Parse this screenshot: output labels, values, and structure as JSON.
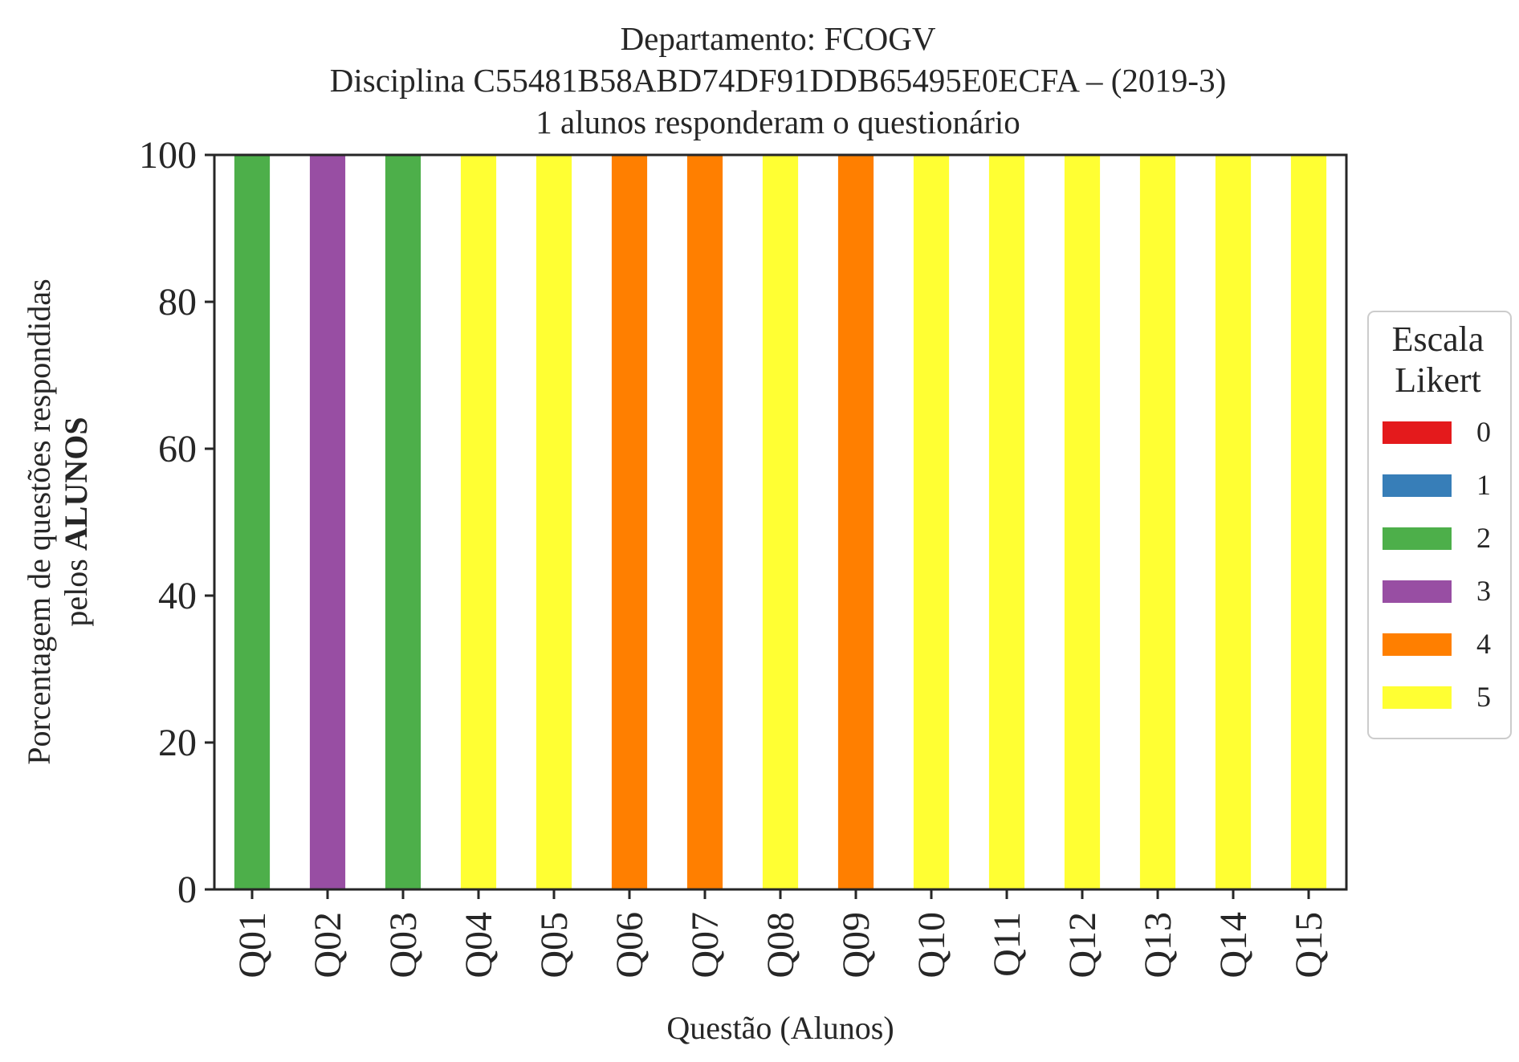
{
  "chart_data": {
    "type": "bar",
    "stacked": true,
    "title": [
      "Departamento: FCOGV",
      "Disciplina C55481B58ABD74DF91DDB65495E0ECFA – (2019-3)",
      "1 alunos responderam o questionário"
    ],
    "xlabel": "Questão (Alunos)",
    "ylabel": {
      "line1": "Porcentagem de questões respondidas",
      "line2_prefix": "pelos ",
      "line2_bold": "ALUNOS"
    },
    "ylim": [
      0,
      100
    ],
    "yticks": [
      0,
      20,
      40,
      60,
      80,
      100
    ],
    "grid": false,
    "categories": [
      "Q01",
      "Q02",
      "Q03",
      "Q04",
      "Q05",
      "Q06",
      "Q07",
      "Q08",
      "Q09",
      "Q10",
      "Q11",
      "Q12",
      "Q13",
      "Q14",
      "Q15"
    ],
    "series": [
      {
        "name": "0",
        "color": "#e41a1c",
        "values": [
          0,
          0,
          0,
          0,
          0,
          0,
          0,
          0,
          0,
          0,
          0,
          0,
          0,
          0,
          0
        ]
      },
      {
        "name": "1",
        "color": "#377eb8",
        "values": [
          0,
          0,
          0,
          0,
          0,
          0,
          0,
          0,
          0,
          0,
          0,
          0,
          0,
          0,
          0
        ]
      },
      {
        "name": "2",
        "color": "#4daf4a",
        "values": [
          100,
          0,
          100,
          0,
          0,
          0,
          0,
          0,
          0,
          0,
          0,
          0,
          0,
          0,
          0
        ]
      },
      {
        "name": "3",
        "color": "#984ea3",
        "values": [
          0,
          100,
          0,
          0,
          0,
          0,
          0,
          0,
          0,
          0,
          0,
          0,
          0,
          0,
          0
        ]
      },
      {
        "name": "4",
        "color": "#ff7f00",
        "values": [
          0,
          0,
          0,
          0,
          0,
          100,
          100,
          0,
          100,
          0,
          0,
          0,
          0,
          0,
          0
        ]
      },
      {
        "name": "5",
        "color": "#ffff33",
        "values": [
          0,
          0,
          0,
          100,
          100,
          0,
          0,
          100,
          0,
          100,
          100,
          100,
          100,
          100,
          100
        ]
      }
    ],
    "legend": {
      "title": [
        "Escala",
        "Likert"
      ],
      "placement": "right"
    }
  }
}
